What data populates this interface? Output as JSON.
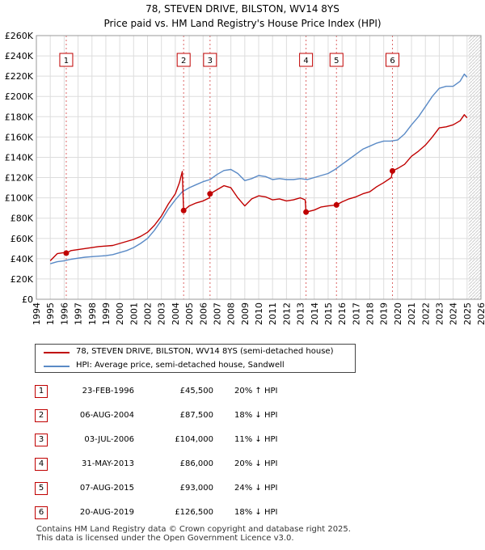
{
  "title": {
    "line1": "78, STEVEN DRIVE, BILSTON, WV14 8YS",
    "line2": "Price paid vs. HM Land Registry's House Price Index (HPI)"
  },
  "colors": {
    "property": "#c00000",
    "hpi": "#5a8ac6",
    "sale_line": "#dd6666",
    "grid": "#dddddd",
    "background": "#ffffff"
  },
  "legend": {
    "property_label": "78, STEVEN DRIVE, BILSTON, WV14 8YS (semi-detached house)",
    "hpi_label": "HPI: Average price, semi-detached house, Sandwell"
  },
  "sales": [
    {
      "num": "1",
      "date": "23-FEB-1996",
      "price": "£45,500",
      "hpi": "20% ↑ HPI"
    },
    {
      "num": "2",
      "date": "06-AUG-2004",
      "price": "£87,500",
      "hpi": "18% ↓ HPI"
    },
    {
      "num": "3",
      "date": "03-JUL-2006",
      "price": "£104,000",
      "hpi": "11% ↓ HPI"
    },
    {
      "num": "4",
      "date": "31-MAY-2013",
      "price": "£86,000",
      "hpi": "20% ↓ HPI"
    },
    {
      "num": "5",
      "date": "07-AUG-2015",
      "price": "£93,000",
      "hpi": "24% ↓ HPI"
    },
    {
      "num": "6",
      "date": "20-AUG-2019",
      "price": "£126,500",
      "hpi": "18% ↓ HPI"
    }
  ],
  "footer": {
    "line1": "Contains HM Land Registry data © Crown copyright and database right 2025.",
    "line2": "This data is licensed under the Open Government Licence v3.0."
  },
  "chart_data": {
    "type": "line",
    "xlim": [
      1994,
      2026
    ],
    "ylim": [
      0,
      260000
    ],
    "grid": true,
    "legend_position": "below",
    "y_ticks": [
      {
        "value": 0,
        "label": "£0"
      },
      {
        "value": 20000,
        "label": "£20K"
      },
      {
        "value": 40000,
        "label": "£40K"
      },
      {
        "value": 60000,
        "label": "£60K"
      },
      {
        "value": 80000,
        "label": "£80K"
      },
      {
        "value": 100000,
        "label": "£100K"
      },
      {
        "value": 120000,
        "label": "£120K"
      },
      {
        "value": 140000,
        "label": "£140K"
      },
      {
        "value": 160000,
        "label": "£160K"
      },
      {
        "value": 180000,
        "label": "£180K"
      },
      {
        "value": 200000,
        "label": "£200K"
      },
      {
        "value": 220000,
        "label": "£220K"
      },
      {
        "value": 240000,
        "label": "£240K"
      },
      {
        "value": 260000,
        "label": "£260K"
      }
    ],
    "x_ticks": [
      "1994",
      "1995",
      "1996",
      "1997",
      "1998",
      "1999",
      "2000",
      "2001",
      "2002",
      "2003",
      "2004",
      "2005",
      "2006",
      "2007",
      "2008",
      "2009",
      "2010",
      "2011",
      "2012",
      "2013",
      "2014",
      "2015",
      "2016",
      "2017",
      "2018",
      "2019",
      "2020",
      "2021",
      "2022",
      "2023",
      "2024",
      "2025",
      "2026"
    ],
    "future_hatch_from": 2025.1,
    "sale_markers": [
      {
        "label": "1",
        "x": 1996.15,
        "y": 45500
      },
      {
        "label": "2",
        "x": 2004.6,
        "y": 87500
      },
      {
        "label": "3",
        "x": 2006.5,
        "y": 104000
      },
      {
        "label": "4",
        "x": 2013.41,
        "y": 86000
      },
      {
        "label": "5",
        "x": 2015.6,
        "y": 93000
      },
      {
        "label": "6",
        "x": 2019.63,
        "y": 126500
      }
    ],
    "series": [
      {
        "name": "78, STEVEN DRIVE, BILSTON, WV14 8YS (semi-detached house)",
        "x": [
          1995.0,
          1995.5,
          1996.0,
          1996.15,
          1996.5,
          1997.0,
          1997.5,
          1998.0,
          1998.5,
          1999.0,
          1999.5,
          2000.0,
          2000.5,
          2001.0,
          2001.5,
          2002.0,
          2002.5,
          2003.0,
          2003.5,
          2004.0,
          2004.3,
          2004.5,
          2004.58,
          2004.6,
          2005.0,
          2005.5,
          2006.0,
          2006.45,
          2006.5,
          2007.0,
          2007.5,
          2008.0,
          2008.5,
          2009.0,
          2009.5,
          2010.0,
          2010.5,
          2011.0,
          2011.5,
          2012.0,
          2012.5,
          2013.0,
          2013.35,
          2013.41,
          2014.0,
          2014.5,
          2015.0,
          2015.6,
          2016.0,
          2016.5,
          2017.0,
          2017.5,
          2018.0,
          2018.5,
          2019.0,
          2019.55,
          2019.63,
          2020.0,
          2020.5,
          2021.0,
          2021.5,
          2022.0,
          2022.5,
          2023.0,
          2023.5,
          2024.0,
          2024.5,
          2024.8,
          2025.0
        ],
        "values": [
          38000,
          45000,
          46000,
          45500,
          48000,
          49000,
          50000,
          51000,
          52000,
          52500,
          53000,
          55000,
          57000,
          59000,
          62000,
          66000,
          73000,
          82000,
          94000,
          104000,
          115000,
          126000,
          95000,
          87500,
          92000,
          95000,
          97000,
          100000,
          104000,
          108000,
          112000,
          110000,
          100000,
          92000,
          99000,
          102000,
          101000,
          98000,
          99000,
          97000,
          98000,
          100000,
          98000,
          86000,
          88000,
          91000,
          92000,
          93000,
          96000,
          99000,
          101000,
          104000,
          106000,
          111000,
          115000,
          120000,
          126500,
          129000,
          133000,
          141000,
          146000,
          152000,
          160000,
          169000,
          170000,
          172000,
          176000,
          182000,
          179000
        ],
        "color": "#c00000"
      },
      {
        "name": "HPI: Average price, semi-detached house, Sandwell",
        "x": [
          1995.0,
          1995.5,
          1996.0,
          1996.5,
          1997.0,
          1997.5,
          1998.0,
          1998.5,
          1999.0,
          1999.5,
          2000.0,
          2000.5,
          2001.0,
          2001.5,
          2002.0,
          2002.5,
          2003.0,
          2003.5,
          2004.0,
          2004.5,
          2005.0,
          2005.5,
          2006.0,
          2006.5,
          2007.0,
          2007.5,
          2008.0,
          2008.5,
          2009.0,
          2009.5,
          2010.0,
          2010.5,
          2011.0,
          2011.5,
          2012.0,
          2012.5,
          2013.0,
          2013.5,
          2014.0,
          2014.5,
          2015.0,
          2015.5,
          2016.0,
          2016.5,
          2017.0,
          2017.5,
          2018.0,
          2018.5,
          2019.0,
          2019.5,
          2020.0,
          2020.5,
          2021.0,
          2021.5,
          2022.0,
          2022.5,
          2023.0,
          2023.5,
          2024.0,
          2024.5,
          2024.8,
          2025.0
        ],
        "values": [
          35000,
          37000,
          38000,
          39500,
          40500,
          41500,
          42000,
          42500,
          43000,
          44000,
          46000,
          48000,
          51000,
          55000,
          60000,
          68000,
          78000,
          89000,
          98000,
          106000,
          110000,
          113000,
          116000,
          118000,
          123000,
          127000,
          128000,
          124000,
          117000,
          119000,
          122000,
          121000,
          118000,
          119000,
          118000,
          118000,
          119000,
          118000,
          120000,
          122000,
          124000,
          128000,
          133000,
          138000,
          143000,
          148000,
          151000,
          154000,
          156000,
          156000,
          157000,
          163000,
          172000,
          180000,
          190000,
          200000,
          208000,
          210000,
          210000,
          215000,
          222000,
          219000
        ],
        "color": "#5a8ac6"
      }
    ]
  }
}
